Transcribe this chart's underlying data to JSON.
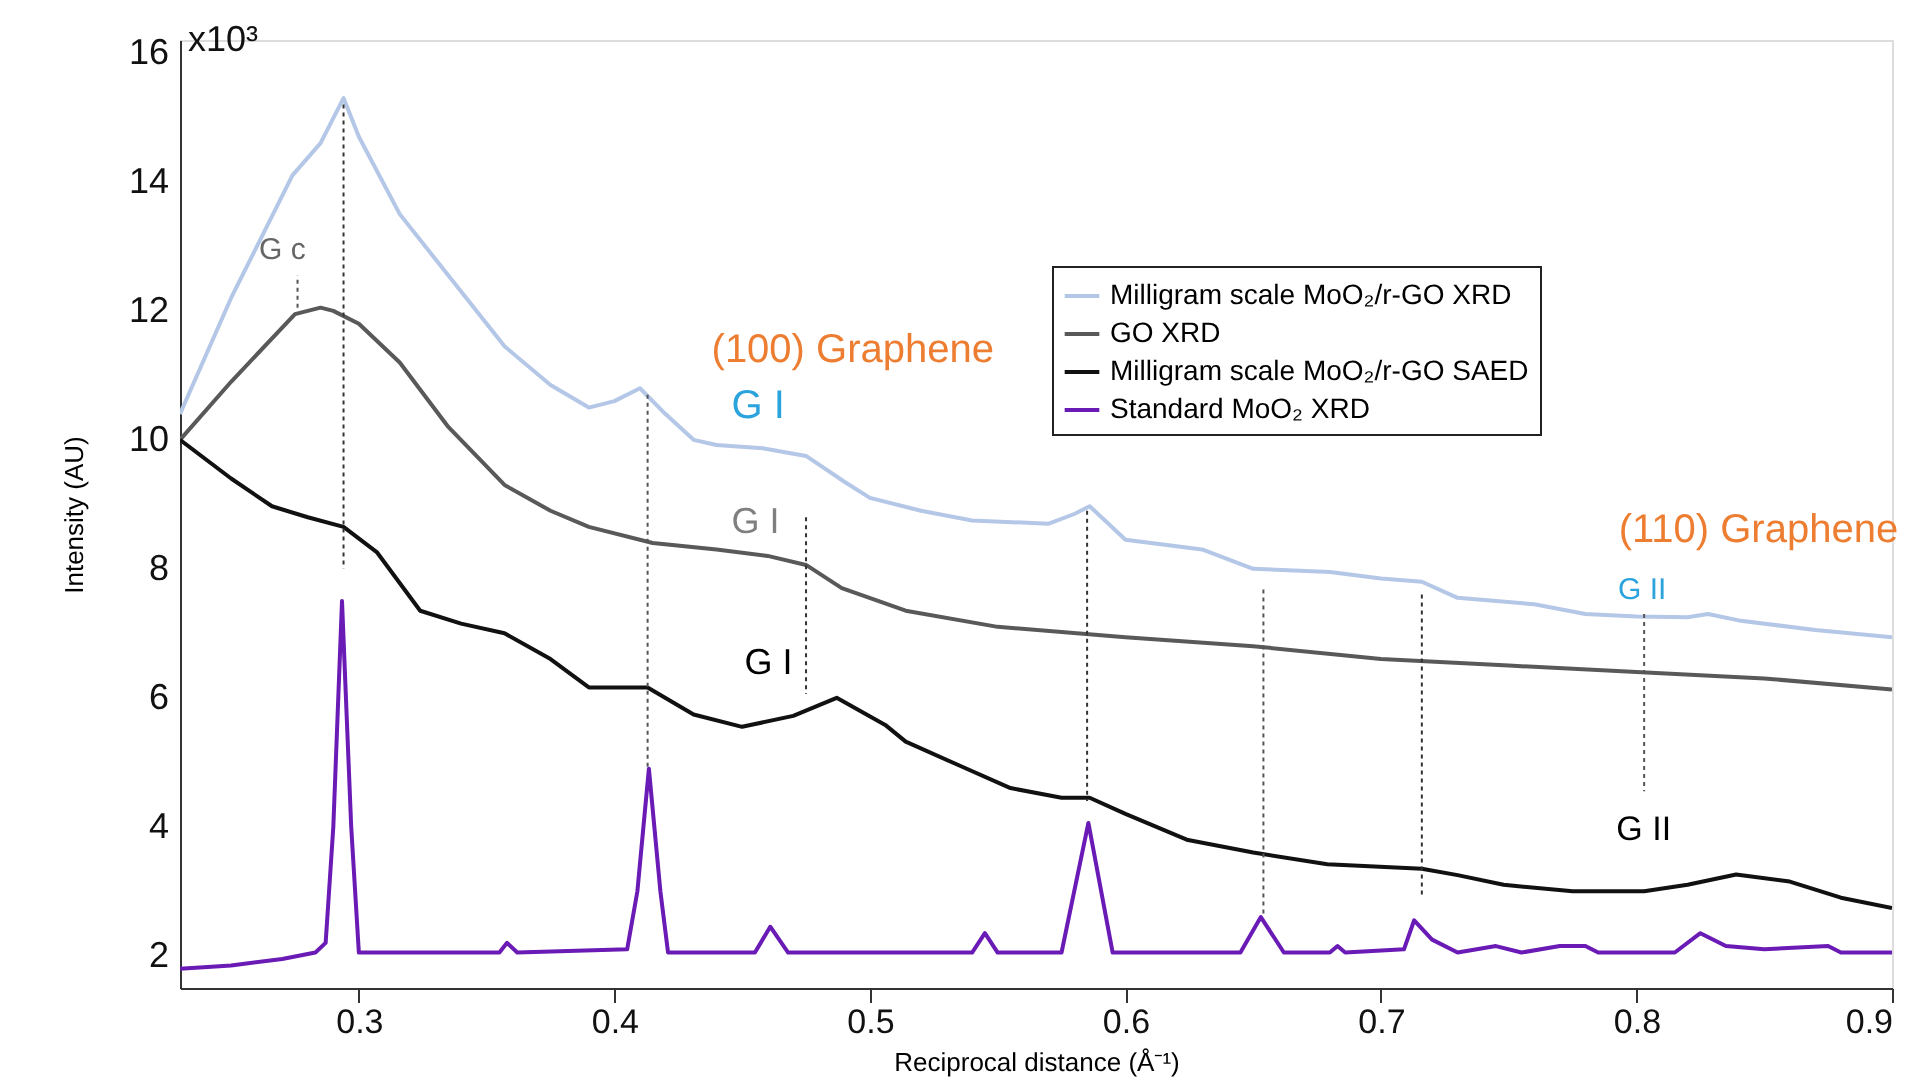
{
  "chart_data": {
    "type": "line",
    "xlabel": "Reciprocal distance (Å⁻¹)",
    "ylabel": "Intensity (AU)",
    "xlim": [
      0.23,
      0.9
    ],
    "ylim": [
      1.5,
      16.2
    ],
    "xticks": [
      0.3,
      0.4,
      0.5,
      0.6,
      0.7,
      0.8,
      0.9
    ],
    "yticks": [
      2,
      4,
      6,
      8,
      10,
      12,
      14,
      16
    ],
    "grid": false,
    "legend": "top right",
    "line_style": "solid",
    "series": [
      {
        "name": "Milligram scale MoO₂/r-GO XRD",
        "color": "#b4c7e7",
        "x": [
          0.23,
          0.25,
          0.274,
          0.285,
          0.294,
          0.3,
          0.316,
          0.34,
          0.357,
          0.375,
          0.39,
          0.4,
          0.41,
          0.42,
          0.431,
          0.44,
          0.458,
          0.475,
          0.49,
          0.5,
          0.52,
          0.54,
          0.57,
          0.58,
          0.586,
          0.592,
          0.6,
          0.63,
          0.65,
          0.68,
          0.7,
          0.716,
          0.73,
          0.76,
          0.78,
          0.8,
          0.82,
          0.828,
          0.84,
          0.87,
          0.9
        ],
        "values": [
          10.4,
          12.2,
          14.1,
          14.6,
          15.3,
          14.7,
          13.5,
          12.3,
          11.45,
          10.85,
          10.5,
          10.6,
          10.8,
          10.4,
          10.0,
          9.92,
          9.87,
          9.75,
          9.35,
          9.1,
          8.9,
          8.75,
          8.7,
          8.85,
          8.97,
          8.75,
          8.45,
          8.3,
          8.0,
          7.95,
          7.85,
          7.8,
          7.55,
          7.45,
          7.3,
          7.26,
          7.25,
          7.3,
          7.2,
          7.05,
          6.94
        ]
      },
      {
        "name": "GO XRD",
        "color": "#595959",
        "x": [
          0.23,
          0.25,
          0.275,
          0.285,
          0.29,
          0.3,
          0.316,
          0.335,
          0.357,
          0.375,
          0.39,
          0.415,
          0.44,
          0.46,
          0.475,
          0.489,
          0.514,
          0.55,
          0.6,
          0.65,
          0.7,
          0.75,
          0.8,
          0.85,
          0.9
        ],
        "values": [
          10.0,
          10.9,
          11.95,
          12.05,
          12.0,
          11.8,
          11.2,
          10.2,
          9.3,
          8.9,
          8.65,
          8.4,
          8.3,
          8.2,
          8.06,
          7.7,
          7.35,
          7.1,
          6.94,
          6.8,
          6.6,
          6.5,
          6.4,
          6.3,
          6.13
        ]
      },
      {
        "name": "Milligram scale MoO₂/r-GO SAED",
        "color": "#111111",
        "x": [
          0.23,
          0.25,
          0.266,
          0.28,
          0.294,
          0.307,
          0.324,
          0.34,
          0.357,
          0.375,
          0.39,
          0.413,
          0.431,
          0.45,
          0.47,
          0.487,
          0.506,
          0.514,
          0.535,
          0.555,
          0.575,
          0.586,
          0.6,
          0.624,
          0.65,
          0.679,
          0.716,
          0.73,
          0.748,
          0.775,
          0.803,
          0.82,
          0.839,
          0.86,
          0.88,
          0.9
        ],
        "values": [
          10.0,
          9.4,
          8.97,
          8.8,
          8.65,
          8.26,
          7.35,
          7.15,
          7.0,
          6.6,
          6.16,
          6.16,
          5.74,
          5.55,
          5.72,
          6.0,
          5.58,
          5.32,
          4.95,
          4.6,
          4.45,
          4.45,
          4.2,
          3.8,
          3.6,
          3.42,
          3.35,
          3.25,
          3.1,
          3.0,
          3.0,
          3.1,
          3.26,
          3.15,
          2.9,
          2.74
        ]
      },
      {
        "name": "Standard MoO₂ XRD",
        "color": "#6a1ab5",
        "x": [
          0.23,
          0.25,
          0.27,
          0.283,
          0.287,
          0.29,
          0.2934,
          0.297,
          0.3,
          0.355,
          0.358,
          0.362,
          0.405,
          0.409,
          0.4135,
          0.418,
          0.421,
          0.455,
          0.461,
          0.468,
          0.54,
          0.545,
          0.55,
          0.575,
          0.5855,
          0.595,
          0.645,
          0.653,
          0.662,
          0.68,
          0.683,
          0.686,
          0.709,
          0.713,
          0.72,
          0.73,
          0.745,
          0.755,
          0.77,
          0.78,
          0.785,
          0.815,
          0.825,
          0.835,
          0.85,
          0.875,
          0.88,
          0.9
        ],
        "values": [
          1.8,
          1.85,
          1.95,
          2.05,
          2.2,
          4.0,
          7.5,
          4.0,
          2.05,
          2.05,
          2.2,
          2.05,
          2.1,
          3.0,
          4.9,
          3.0,
          2.05,
          2.05,
          2.45,
          2.05,
          2.05,
          2.35,
          2.05,
          2.05,
          4.06,
          2.05,
          2.05,
          2.6,
          2.05,
          2.05,
          2.15,
          2.05,
          2.1,
          2.55,
          2.25,
          2.05,
          2.15,
          2.05,
          2.15,
          2.15,
          2.05,
          2.05,
          2.35,
          2.15,
          2.1,
          2.15,
          2.05,
          2.05
        ]
      },
      {
        "color": "#333333",
        "line_style": "dashed",
        "x": [
          0.294,
          0.294
        ],
        "values": [
          15.2,
          8.0
        ]
      },
      {
        "color": "#555555",
        "line_style": "dashed",
        "x": [
          0.413,
          0.413
        ],
        "values": [
          10.7,
          4.9
        ]
      },
      {
        "color": "#333333",
        "line_style": "dashed",
        "x": [
          0.475,
          0.475
        ],
        "values": [
          8.8,
          6.06
        ]
      },
      {
        "color": "#333333",
        "line_style": "dashed",
        "x": [
          0.585,
          0.585
        ],
        "values": [
          8.9,
          4.4
        ]
      },
      {
        "color": "#555555",
        "line_style": "dashed",
        "x": [
          0.654,
          0.654
        ],
        "values": [
          7.68,
          2.6
        ]
      },
      {
        "color": "#333333",
        "line_style": "dashed",
        "x": [
          0.716,
          0.716
        ],
        "values": [
          7.6,
          2.94
        ]
      },
      {
        "color": "#555555",
        "line_style": "dashed",
        "x": [
          0.803,
          0.803
        ],
        "values": [
          7.3,
          4.55
        ]
      },
      {
        "color": "#555555",
        "line_style": "dashed",
        "x": [
          0.276,
          0.276
        ],
        "values": [
          12.05,
          12.55
        ]
      }
    ],
    "annotations": [
      "x10³",
      "G c",
      "(100) Graphene",
      "G I",
      "G I",
      "G I",
      "(110) Graphene",
      "G II",
      "G II"
    ]
  }
}
